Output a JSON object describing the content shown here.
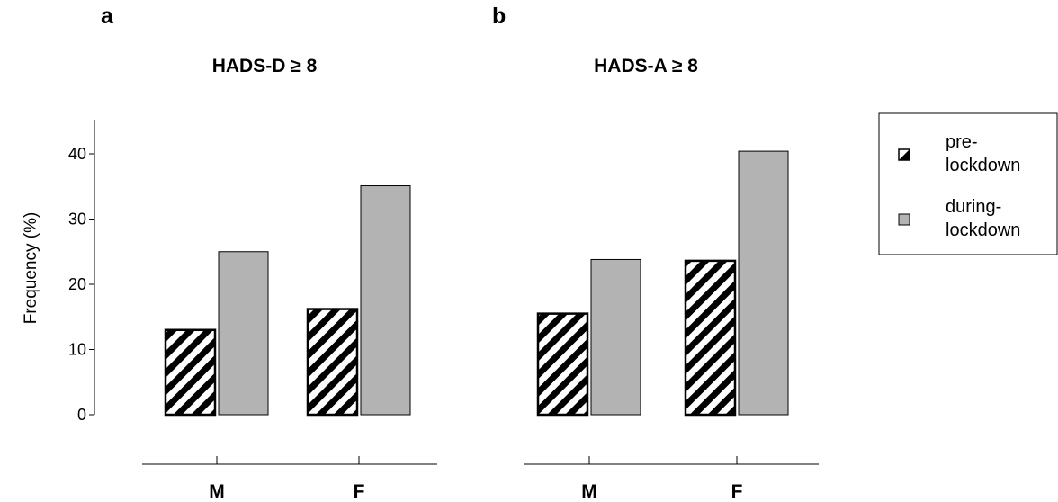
{
  "chart_data": [
    {
      "type": "bar",
      "panel": "a",
      "title": "HADS-D ≥ 8",
      "categories": [
        "M",
        "F"
      ],
      "series": [
        {
          "name": "pre-lockdown",
          "values": [
            13,
            16.2
          ],
          "pattern": "hatched"
        },
        {
          "name": "during-lockdown",
          "values": [
            25,
            35.1
          ],
          "color": "#b3b3b3"
        }
      ],
      "ylabel": "Frequency (%)",
      "ylim": [
        0,
        45
      ],
      "yticks": [
        0,
        10,
        20,
        30,
        40
      ],
      "grid": false
    },
    {
      "type": "bar",
      "panel": "b",
      "title": "HADS-A ≥ 8",
      "categories": [
        "M",
        "F"
      ],
      "series": [
        {
          "name": "pre-lockdown",
          "values": [
            15.5,
            23.6
          ],
          "pattern": "hatched"
        },
        {
          "name": "during-lockdown",
          "values": [
            23.8,
            40.4
          ],
          "color": "#b3b3b3"
        }
      ],
      "ylim": [
        0,
        45
      ],
      "grid": false
    }
  ],
  "legend": {
    "placement": "right",
    "entries": [
      {
        "line1": "pre-",
        "line2": "lockdown",
        "swatch": "half-black"
      },
      {
        "line1": "during-",
        "line2": "lockdown",
        "swatch": "#b3b3b3"
      }
    ]
  }
}
